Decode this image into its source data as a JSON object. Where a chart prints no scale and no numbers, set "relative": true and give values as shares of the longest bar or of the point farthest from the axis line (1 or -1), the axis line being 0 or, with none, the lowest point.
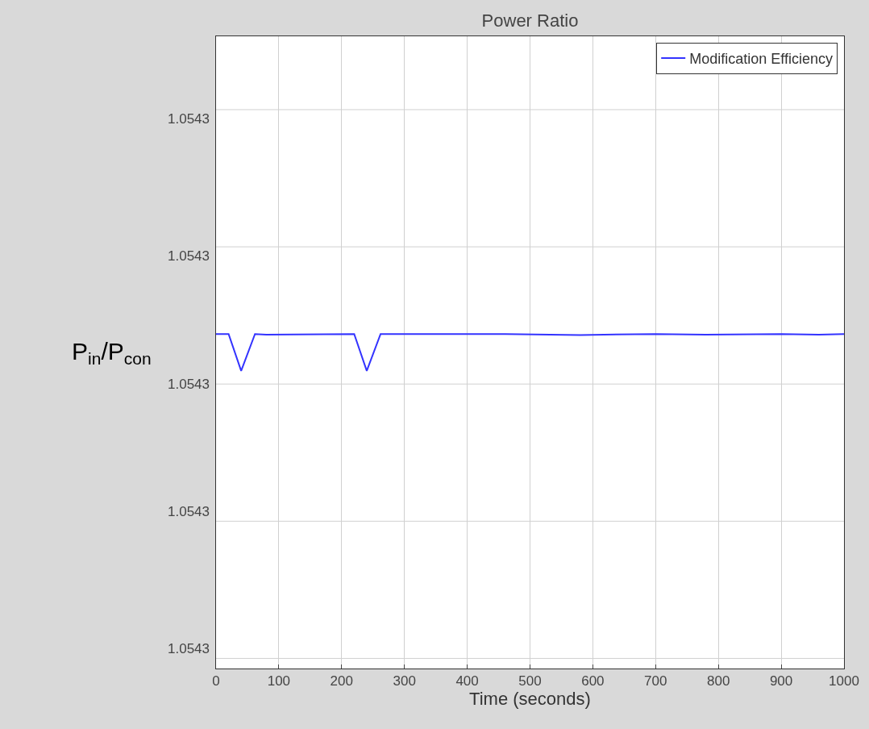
{
  "chart_data": {
    "type": "line",
    "title": "Power Ratio",
    "xlabel": "Time (seconds)",
    "ylabel": "P$_{in}$/P$_{con}$",
    "relative": true,
    "annotations": [
      "1.0543",
      "1.0543",
      "1.0543",
      "1.0543",
      "1.0543"
    ],
    "xlim": [
      0,
      1000
    ],
    "xticks": [
      0,
      100,
      200,
      300,
      400,
      500,
      600,
      700,
      800,
      900,
      1000
    ],
    "grid": true,
    "legend": "top right",
    "series": [
      {
        "name": "Modification Efficiency",
        "color": "#3333ff",
        "x": [
          0,
          20,
          40,
          62,
          80,
          220,
          240,
          262,
          300,
          460,
          580,
          700,
          780,
          900,
          960,
          1000
        ],
        "values": [
          1,
          1,
          0.89,
          1,
          0.998,
          1,
          0.89,
          1,
          1,
          1,
          0.997,
          1,
          0.998,
          1,
          0.998,
          1
        ]
      }
    ]
  }
}
